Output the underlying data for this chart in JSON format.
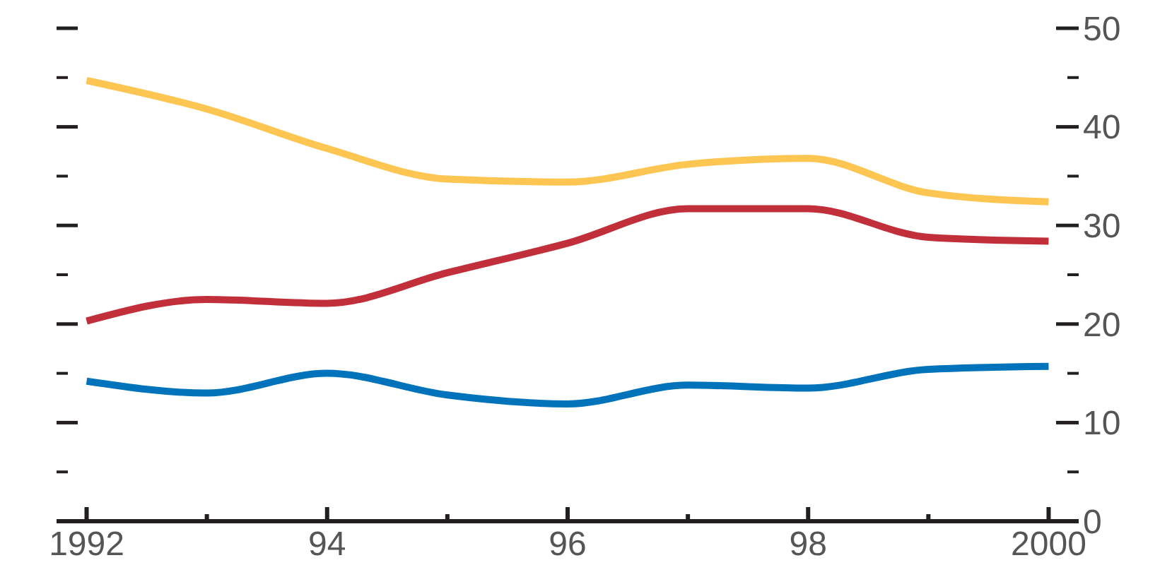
{
  "chart_data": {
    "type": "line",
    "x": [
      1992,
      1993,
      1994,
      1995,
      1996,
      1997,
      1998,
      1999,
      2000
    ],
    "series": [
      {
        "color": "#fdc551",
        "values": [
          44.7,
          41.8,
          37.8,
          34.7,
          34.4,
          36.2,
          36.8,
          33.3,
          32.4
        ]
      },
      {
        "color": "#c1303a",
        "values": [
          20.3,
          22.5,
          22.1,
          25.2,
          28.2,
          31.7,
          31.7,
          28.8,
          28.4
        ]
      },
      {
        "color": "#0073bb",
        "values": [
          14.2,
          13.0,
          15.0,
          12.8,
          11.9,
          13.8,
          13.5,
          15.4,
          15.7
        ]
      }
    ],
    "xlim": [
      1991.75,
      2000.25
    ],
    "xticks": [
      {
        "value": 1992,
        "label": "1992"
      },
      {
        "value": 1993,
        "label": null
      },
      {
        "value": 1994,
        "label": "94"
      },
      {
        "value": 1995,
        "label": null
      },
      {
        "value": 1996,
        "label": "96"
      },
      {
        "value": 1997,
        "label": null
      },
      {
        "value": 1998,
        "label": "98"
      },
      {
        "value": 1999,
        "label": null
      },
      {
        "value": 2000,
        "label": "2000"
      }
    ],
    "ylim": [
      0,
      50
    ],
    "yticks": [
      0,
      {
        "value": 5,
        "label": null
      },
      10,
      {
        "value": 15,
        "label": null
      },
      20,
      {
        "value": 25,
        "label": null
      },
      30,
      {
        "value": 35,
        "label": null
      },
      40,
      {
        "value": 45,
        "label": null
      },
      50
    ],
    "grid": false,
    "marker": "none",
    "line_style": "solid"
  }
}
